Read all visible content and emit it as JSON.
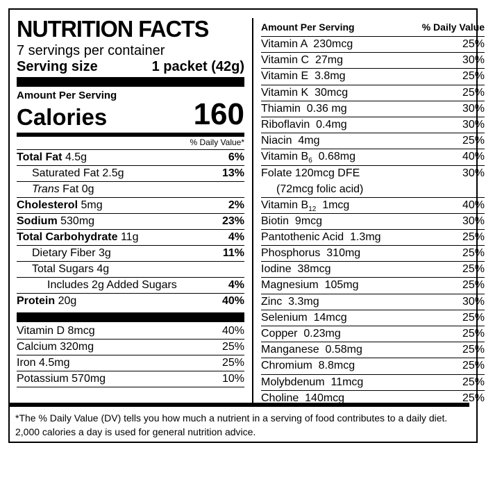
{
  "label": {
    "title": "NUTRITION FACTS",
    "servings_per_container": "7 servings per container",
    "serving_size_label": "Serving size",
    "serving_size_value": "1 packet (42g)",
    "amount_per_serving": "Amount Per Serving",
    "calories_label": "Calories",
    "calories_value": "160",
    "daily_value_header": "% Daily Value*",
    "macros": [
      {
        "name": "Total Fat",
        "amount": "4.5g",
        "dv": "6%"
      },
      {
        "name": "Saturated Fat",
        "amount": "2.5g",
        "dv": "13%"
      },
      {
        "name": "Trans",
        "name_suffix": " Fat 0g"
      },
      {
        "name": "Cholesterol",
        "amount": "5mg",
        "dv": "2%"
      },
      {
        "name": "Sodium",
        "amount": "530mg",
        "dv": "23%"
      },
      {
        "name": "Total Carbohydrate",
        "amount": "11g",
        "dv": "4%"
      },
      {
        "name": "Dietary Fiber",
        "amount": "3g",
        "dv": "11%"
      },
      {
        "name": "Total Sugars",
        "amount": "4g"
      },
      {
        "name": "Includes 2g Added Sugars",
        "dv": "4%"
      },
      {
        "name": "Protein",
        "amount": "20g",
        "dv": "40%"
      }
    ],
    "left_vitamins": [
      {
        "name": "Vitamin D 8mcg",
        "dv": "40%"
      },
      {
        "name": "Calcium 320mg",
        "dv": "25%"
      },
      {
        "name": "Iron 4.5mg",
        "dv": "25%"
      },
      {
        "name": "Potassium 570mg",
        "dv": "10%"
      }
    ],
    "right_header": {
      "amount": "Amount Per Serving",
      "dv": "% Daily Value"
    },
    "right_vitamins": [
      {
        "name": "Vitamin A  230mcg",
        "dv": "25%"
      },
      {
        "name": "Vitamin C  27mg",
        "dv": "30%"
      },
      {
        "name": "Vitamin E  3.8mg",
        "dv": "25%"
      },
      {
        "name": "Vitamin K  30mcg",
        "dv": "25%"
      },
      {
        "name": "Thiamin  0.36 mg",
        "dv": "30%"
      },
      {
        "name": "Riboflavin  0.4mg",
        "dv": "30%"
      },
      {
        "name": "Niacin  4mg",
        "dv": "25%"
      },
      {
        "name": "Vitamin B",
        "sub": "6",
        "rest": "  0.68mg",
        "dv": "40%"
      },
      {
        "name": "Folate  120mcg DFE",
        "second_line": "(72mcg folic acid)",
        "dv": "30%"
      },
      {
        "name": "Vitamin B",
        "sub": "12",
        "rest": "  1mcg",
        "dv": "40%"
      },
      {
        "name": "Biotin  9mcg",
        "dv": "30%"
      },
      {
        "name": "Pantothenic Acid  1.3mg",
        "dv": "25%"
      },
      {
        "name": "Phosphorus  310mg",
        "dv": "25%"
      },
      {
        "name": "Iodine  38mcg",
        "dv": "25%"
      },
      {
        "name": "Magnesium  105mg",
        "dv": "25%"
      },
      {
        "name": "Zinc  3.3mg",
        "dv": "30%"
      },
      {
        "name": "Selenium  14mcg",
        "dv": "25%"
      },
      {
        "name": "Copper  0.23mg",
        "dv": "25%"
      },
      {
        "name": "Manganese  0.58mg",
        "dv": "25%"
      },
      {
        "name": "Chromium  8.8mcg",
        "dv": "25%"
      },
      {
        "name": "Molybdenum  11mcg",
        "dv": "25%"
      },
      {
        "name": "Choline  140mcg",
        "dv": "25%"
      }
    ],
    "footnote": "*The % Daily Value (DV) tells you how much a nutrient in a serving of food contributes to a daily diet. 2,000 calories a day is used for general nutrition advice."
  }
}
